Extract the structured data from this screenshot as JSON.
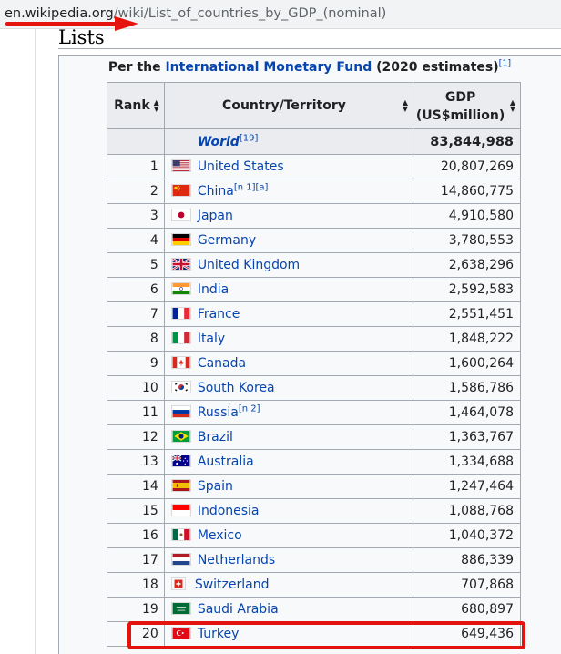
{
  "browser": {
    "url_host": "en.wikipedia.org",
    "url_path": "/wiki/List_of_countries_by_GDP_(nominal)"
  },
  "section_heading": "Lists",
  "caption": {
    "prefix": "Per the ",
    "link": "International Monetary Fund",
    "suffix": " (2020 estimates)",
    "ref": "[1]"
  },
  "table": {
    "headers": {
      "rank": "Rank",
      "country": "Country/Territory",
      "gdp_line1": "GDP",
      "gdp_line2": "(US$million)"
    },
    "world": {
      "name": "World",
      "ref": "[19]",
      "value": "83,844,988"
    },
    "rows": [
      {
        "rank": "1",
        "country": "United States",
        "note": "",
        "value": "20,807,269",
        "flag": "us-flag-icon"
      },
      {
        "rank": "2",
        "country": "China",
        "note": "[n 1][a]",
        "value": "14,860,775",
        "flag": "cn-flag-icon"
      },
      {
        "rank": "3",
        "country": "Japan",
        "note": "",
        "value": "4,910,580",
        "flag": "jp-flag-icon"
      },
      {
        "rank": "4",
        "country": "Germany",
        "note": "",
        "value": "3,780,553",
        "flag": "de-flag-icon"
      },
      {
        "rank": "5",
        "country": "United Kingdom",
        "note": "",
        "value": "2,638,296",
        "flag": "gb-flag-icon"
      },
      {
        "rank": "6",
        "country": "India",
        "note": "",
        "value": "2,592,583",
        "flag": "in-flag-icon"
      },
      {
        "rank": "7",
        "country": "France",
        "note": "",
        "value": "2,551,451",
        "flag": "fr-flag-icon"
      },
      {
        "rank": "8",
        "country": "Italy",
        "note": "",
        "value": "1,848,222",
        "flag": "it-flag-icon"
      },
      {
        "rank": "9",
        "country": "Canada",
        "note": "",
        "value": "1,600,264",
        "flag": "ca-flag-icon"
      },
      {
        "rank": "10",
        "country": "South Korea",
        "note": "",
        "value": "1,586,786",
        "flag": "kr-flag-icon"
      },
      {
        "rank": "11",
        "country": "Russia",
        "note": "[n 2]",
        "value": "1,464,078",
        "flag": "ru-flag-icon"
      },
      {
        "rank": "12",
        "country": "Brazil",
        "note": "",
        "value": "1,363,767",
        "flag": "br-flag-icon"
      },
      {
        "rank": "13",
        "country": "Australia",
        "note": "",
        "value": "1,334,688",
        "flag": "au-flag-icon"
      },
      {
        "rank": "14",
        "country": "Spain",
        "note": "",
        "value": "1,247,464",
        "flag": "es-flag-icon"
      },
      {
        "rank": "15",
        "country": "Indonesia",
        "note": "",
        "value": "1,088,768",
        "flag": "id-flag-icon"
      },
      {
        "rank": "16",
        "country": "Mexico",
        "note": "",
        "value": "1,040,372",
        "flag": "mx-flag-icon"
      },
      {
        "rank": "17",
        "country": "Netherlands",
        "note": "",
        "value": "886,339",
        "flag": "nl-flag-icon"
      },
      {
        "rank": "18",
        "country": "Switzerland",
        "note": "",
        "value": "707,868",
        "flag": "ch-flag-icon"
      },
      {
        "rank": "19",
        "country": "Saudi Arabia",
        "note": "",
        "value": "680,897",
        "flag": "sa-flag-icon"
      },
      {
        "rank": "20",
        "country": "Turkey",
        "note": "",
        "value": "649,436",
        "flag": "tr-flag-icon"
      }
    ]
  },
  "colors": {
    "link": "#0645ad",
    "annotation_red": "#e4130d",
    "header_bg": "#eaecf0",
    "cell_bg": "#f8f9fa",
    "border": "#a2a9b1"
  },
  "annotations": {
    "url_arrow": "red-arrow-icon",
    "highlight_box": "red-highlight-box",
    "highlighted_rank": "20"
  }
}
